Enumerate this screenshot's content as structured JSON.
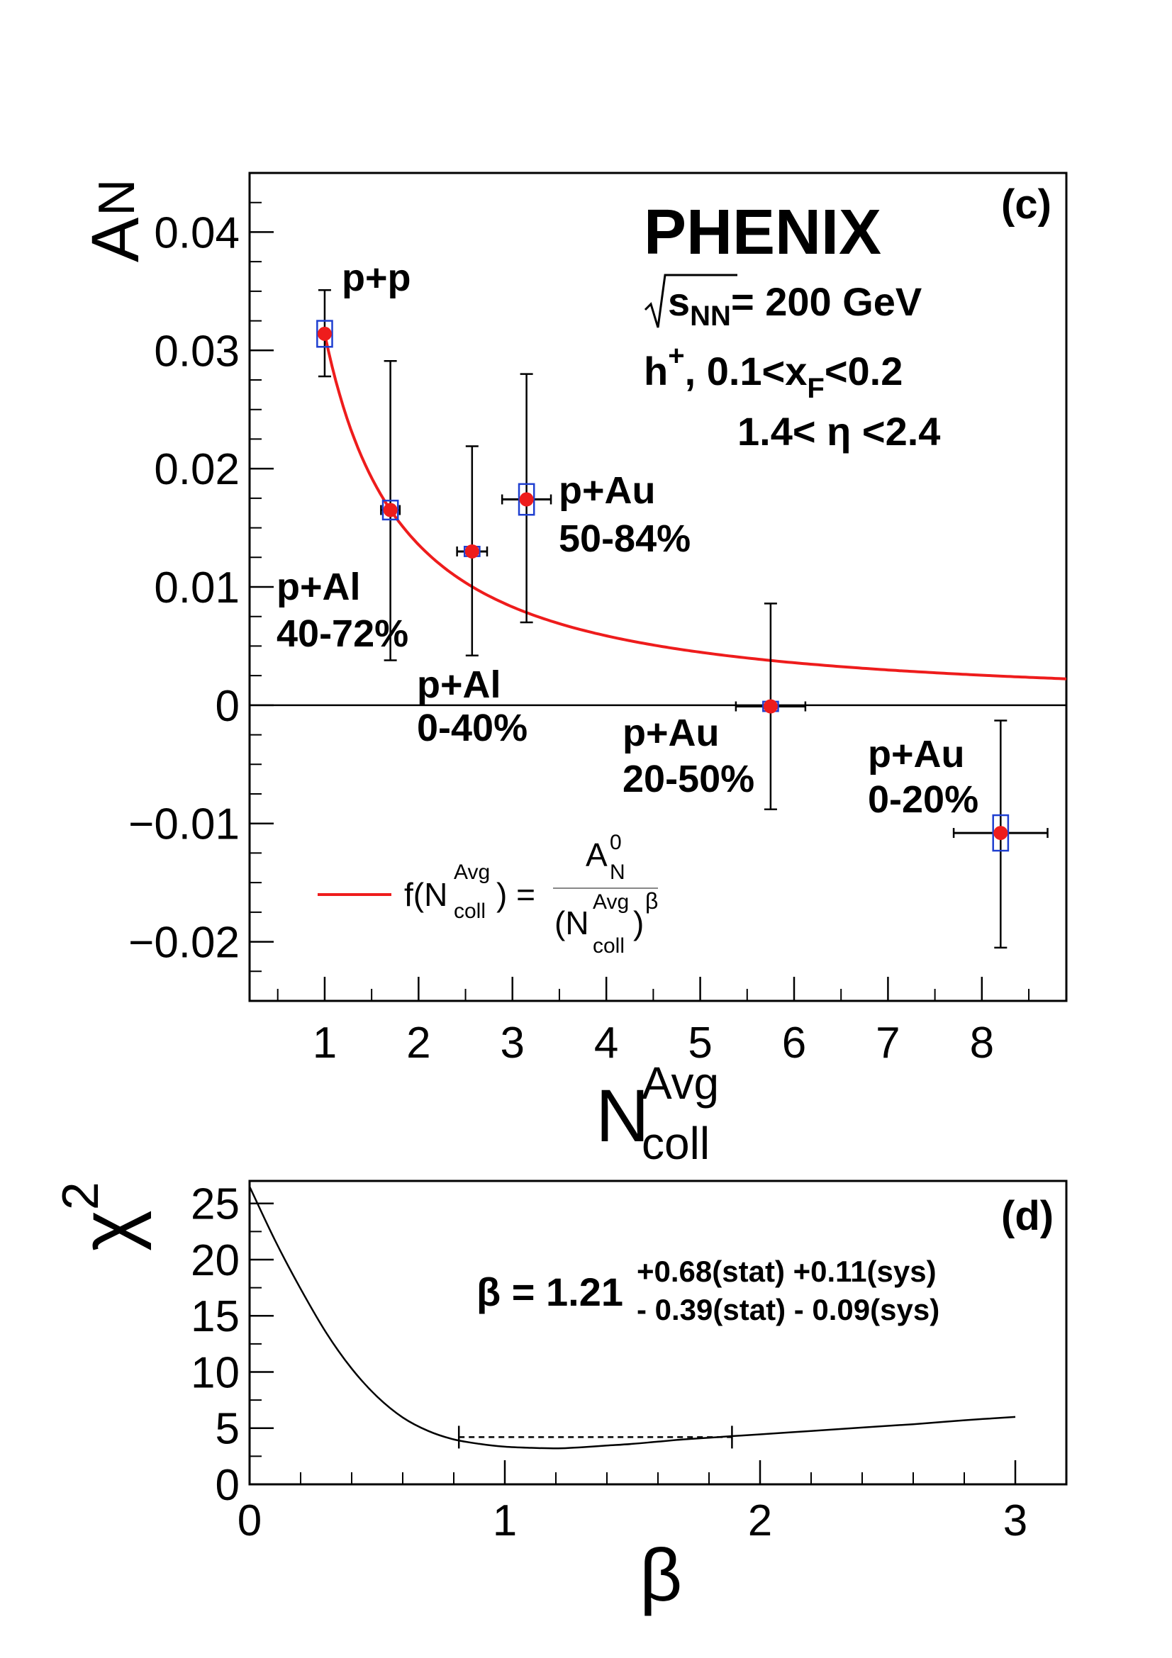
{
  "chart_data": [
    {
      "type": "scatter",
      "panel_label": "(c)",
      "xlabel": "N",
      "xlabel_sup": "Avg",
      "xlabel_sub": "coll",
      "ylabel": "A",
      "ylabel_sub": "N",
      "xlim": [
        0.2,
        8.9
      ],
      "ylim": [
        -0.025,
        0.045
      ],
      "x_ticks": [
        1,
        2,
        3,
        4,
        5,
        6,
        7,
        8
      ],
      "x_tick_labels": [
        "1",
        "2",
        "3",
        "4",
        "5",
        "6",
        "7",
        "8"
      ],
      "y_ticks": [
        -0.02,
        -0.01,
        0,
        0.01,
        0.02,
        0.03,
        0.04
      ],
      "y_tick_labels": [
        "−0.02",
        "−0.01",
        "0",
        "0.01",
        "0.02",
        "0.03",
        "0.04"
      ],
      "experiment": "PHENIX",
      "energy_prefix": "s",
      "energy_sub": "NN",
      "energy_value": "= 200 GeV",
      "particle_line": "h",
      "particle_sup": "+",
      "particle_rest": ",  0.1<x",
      "particle_sub": "F",
      "particle_end": "<0.2",
      "eta_line": "1.4< η <2.4",
      "points": [
        {
          "name": "p+p",
          "centrality": "",
          "x": 1.0,
          "y": 0.0314,
          "x_err": 0.0,
          "y_err_low": 0.0036,
          "y_err_high": 0.0037,
          "sys_x": 0.08,
          "sys_y": 0.0011
        },
        {
          "name": "p+Al",
          "centrality": "40-72%",
          "x": 1.7,
          "y": 0.0165,
          "x_err": 0.1,
          "y_err_low": 0.0127,
          "y_err_high": 0.0126,
          "sys_x": 0.08,
          "sys_y": 0.0008
        },
        {
          "name": "p+Al",
          "centrality": "0-40%",
          "x": 2.57,
          "y": 0.013,
          "x_err": 0.16,
          "y_err_low": 0.0088,
          "y_err_high": 0.0089,
          "sys_x": 0.08,
          "sys_y": 0.0004
        },
        {
          "name": "p+Au",
          "centrality": "50-84%",
          "x": 3.15,
          "y": 0.0174,
          "x_err": 0.26,
          "y_err_low": 0.0104,
          "y_err_high": 0.0106,
          "sys_x": 0.08,
          "sys_y": 0.0013
        },
        {
          "name": "p+Au",
          "centrality": "20-50%",
          "x": 5.75,
          "y": -0.0001,
          "x_err": 0.37,
          "y_err_low": 0.0087,
          "y_err_high": 0.0087,
          "sys_x": 0.08,
          "sys_y": 0.0004
        },
        {
          "name": "p+Au",
          "centrality": "0-20%",
          "x": 8.2,
          "y": -0.0108,
          "x_err": 0.5,
          "y_err_low": 0.0097,
          "y_err_high": 0.0095,
          "sys_x": 0.08,
          "sys_y": 0.0015
        }
      ],
      "fit": {
        "A0": 0.0314,
        "beta": 1.21,
        "x_min": 1.0,
        "x_max": 8.9,
        "color": "#ee1c1c"
      },
      "legend_entry": {
        "f_prefix": "f(N",
        "f_sup": "Avg",
        "f_sub": "coll",
        "f_suffix": ") =",
        "num_main": "A",
        "num_sup": "0",
        "num_sub": "N",
        "den_open": "(N",
        "den_sup": "Avg",
        "den_sub": "coll",
        "den_close": ")",
        "den_power": "β"
      },
      "colors": {
        "point": "#ee1c1c",
        "sys_box": "#1f3fd0",
        "axis": "#000000"
      }
    },
    {
      "type": "line",
      "panel_label": "(d)",
      "xlabel": "β",
      "ylabel": "χ",
      "ylabel_sup": "2",
      "xlim": [
        0,
        3.2
      ],
      "ylim": [
        0,
        27
      ],
      "x_ticks": [
        0,
        1,
        2,
        3
      ],
      "x_tick_labels": [
        "0",
        "1",
        "2",
        "3"
      ],
      "y_ticks": [
        0,
        5,
        10,
        15,
        20,
        25
      ],
      "y_tick_labels": [
        "0",
        "5",
        "10",
        "15",
        "20",
        "25"
      ],
      "curve": {
        "x": [
          0,
          0.1,
          0.2,
          0.3,
          0.4,
          0.5,
          0.6,
          0.7,
          0.8,
          0.9,
          1.0,
          1.1,
          1.21,
          1.3,
          1.4,
          1.5,
          1.6,
          1.7,
          1.8,
          1.9,
          2.0,
          2.2,
          2.4,
          2.6,
          2.8,
          3.0
        ],
        "y": [
          26.5,
          21.7,
          17.4,
          13.5,
          10.3,
          7.8,
          5.95,
          4.75,
          4.0,
          3.6,
          3.35,
          3.25,
          3.2,
          3.3,
          3.45,
          3.6,
          3.8,
          4.0,
          4.15,
          4.3,
          4.45,
          4.75,
          5.05,
          5.35,
          5.7,
          6.0
        ]
      },
      "interval": {
        "x_low": 0.82,
        "x_high": 1.89,
        "y": 4.2
      },
      "beta_label": "β = 1.21",
      "err_upper": "+0.68(stat) +0.11(sys)",
      "err_lower": "- 0.39(stat)  - 0.09(sys)"
    }
  ]
}
